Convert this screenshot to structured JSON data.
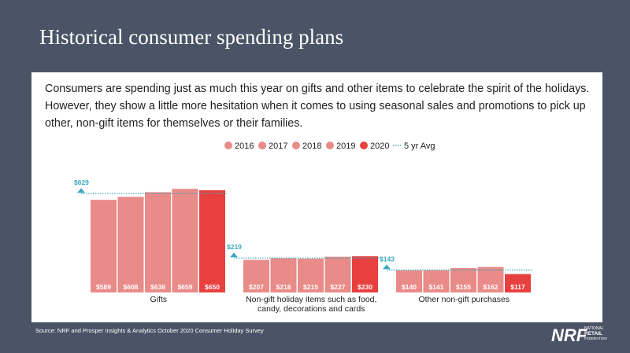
{
  "chart_data": {
    "type": "bar",
    "title": "Historical consumer spending plans",
    "subtitle": "Consumers are spending just as much this year on gifts and other items to celebrate the spirit of the holidays. However, they show a little more hesitation when it comes to using seasonal sales and promotions to pick up other, non-gift items for themselves or their families.",
    "categories": [
      "Gifts",
      "Non-gift holiday items such as food, candy, decorations and cards",
      "Other non-gift purchases"
    ],
    "series": [
      {
        "name": "2016",
        "color": "#e98b88",
        "values": [
          589,
          207,
          140
        ],
        "value_labels": [
          "$589",
          "$207",
          "$140"
        ]
      },
      {
        "name": "2017",
        "color": "#e98b88",
        "values": [
          608,
          218,
          141
        ],
        "value_labels": [
          "$608",
          "$218",
          "$141"
        ]
      },
      {
        "name": "2018",
        "color": "#e98b88",
        "values": [
          638,
          215,
          155
        ],
        "value_labels": [
          "$638",
          "$215",
          "$155"
        ]
      },
      {
        "name": "2019",
        "color": "#e98b88",
        "values": [
          659,
          227,
          162
        ],
        "value_labels": [
          "$659",
          "$227",
          "$162"
        ]
      },
      {
        "name": "2020",
        "color": "#e8403e",
        "values": [
          650,
          230,
          117
        ],
        "value_labels": [
          "$650",
          "$230",
          "$117"
        ]
      }
    ],
    "average": {
      "name": "5 yr Avg",
      "color": "#3aa8c1",
      "values": [
        629,
        219,
        143
      ],
      "value_labels": [
        "$629",
        "$219",
        "$143"
      ]
    },
    "source": "Source: NRF and Prosper Insights & Analytics October 2020 Consumer Holiday Survey",
    "logo": "NRF",
    "logo_text": [
      "NATIONAL",
      "RETAIL",
      "FEDERATION"
    ]
  }
}
